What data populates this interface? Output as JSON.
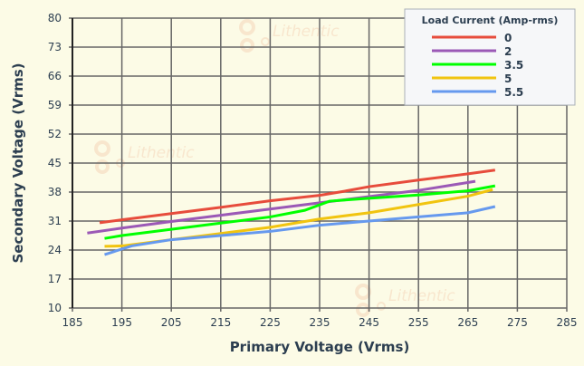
{
  "watermark": "Lithentic",
  "chart_data": {
    "type": "line",
    "title": "",
    "xlabel": "Primary Voltage (Vrms)",
    "ylabel": "Secondary Voltage (Vrms)",
    "xlim": [
      185,
      285
    ],
    "ylim": [
      10,
      80
    ],
    "xticks": [
      185,
      195,
      205,
      215,
      225,
      235,
      245,
      255,
      265,
      275,
      285
    ],
    "yticks": [
      10,
      17,
      24,
      31,
      38,
      45,
      52,
      59,
      66,
      73,
      80
    ],
    "grid": true,
    "legend": {
      "title": "Load Current (Amp-rms)",
      "placement": "top-right"
    },
    "series": [
      {
        "name": "0",
        "color": "#e74c3c",
        "points": [
          [
            190.5,
            30.6
          ],
          [
            195,
            31.3
          ],
          [
            205,
            32.8
          ],
          [
            215,
            34.3
          ],
          [
            225,
            35.9
          ],
          [
            235,
            37.2
          ],
          [
            240,
            38.2
          ],
          [
            245,
            39.3
          ],
          [
            255,
            40.9
          ],
          [
            265,
            42.4
          ],
          [
            270.5,
            43.3
          ]
        ]
      },
      {
        "name": "2",
        "color": "#9b59b6",
        "points": [
          [
            188,
            28.1
          ],
          [
            195,
            29.3
          ],
          [
            205,
            30.9
          ],
          [
            215,
            32.4
          ],
          [
            225,
            33.9
          ],
          [
            235,
            35.4
          ],
          [
            245,
            36.9
          ],
          [
            255,
            38.4
          ],
          [
            266.5,
            40.6
          ]
        ]
      },
      {
        "name": "3.5",
        "color": "#00ff00",
        "points": [
          [
            191.5,
            26.8
          ],
          [
            195,
            27.5
          ],
          [
            205,
            29.0
          ],
          [
            215,
            30.5
          ],
          [
            225,
            32.0
          ],
          [
            232,
            33.6
          ],
          [
            237,
            35.8
          ],
          [
            245,
            36.5
          ],
          [
            255,
            37.3
          ],
          [
            265,
            38.3
          ],
          [
            270.5,
            39.5
          ]
        ]
      },
      {
        "name": "5",
        "color": "#f1c40f",
        "points": [
          [
            191.5,
            24.9
          ],
          [
            195,
            25.0
          ],
          [
            205,
            26.5
          ],
          [
            215,
            28.0
          ],
          [
            225,
            29.5
          ],
          [
            235,
            31.5
          ],
          [
            245,
            33.0
          ],
          [
            255,
            35.0
          ],
          [
            265,
            37.0
          ],
          [
            270,
            38.6
          ]
        ]
      },
      {
        "name": "5.5",
        "color": "#6699ee",
        "points": [
          [
            191.5,
            22.9
          ],
          [
            197,
            25.0
          ],
          [
            205,
            26.5
          ],
          [
            215,
            27.5
          ],
          [
            225,
            28.5
          ],
          [
            235,
            30.0
          ],
          [
            245,
            31.0
          ],
          [
            255,
            32.0
          ],
          [
            265,
            33.0
          ],
          [
            270.5,
            34.5
          ]
        ]
      }
    ]
  }
}
